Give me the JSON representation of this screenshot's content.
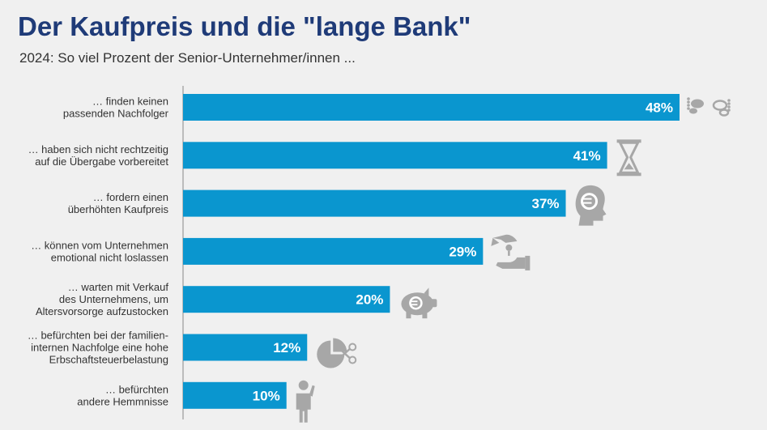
{
  "chart_data": {
    "type": "bar",
    "orientation": "horizontal",
    "title": "Der Kaufpreis und die \"lange Bank\"",
    "subtitle": "2024: So viel Prozent der Senior-Unternehmer/innen ...",
    "categories": [
      [
        "… finden keinen",
        "passenden Nachfolger"
      ],
      [
        "… haben sich nicht rechtzeitig",
        "auf die Übergabe vorbereitet"
      ],
      [
        "… fordern einen",
        "überhöhten Kaufpreis"
      ],
      [
        "… können vom Unternehmen",
        "emotional nicht loslassen"
      ],
      [
        "… warten mit Verkauf",
        "des Unternehmens, um",
        "Altersvorsorge aufzustocken"
      ],
      [
        "… befürchten bei der familien-",
        "internen Nachfolge eine hohe",
        "Erbschaftsteuerbelastung"
      ],
      [
        "… befürchten",
        "andere Hemmnisse"
      ]
    ],
    "values": [
      48,
      41,
      37,
      29,
      20,
      12,
      10
    ],
    "value_labels": [
      "48%",
      "41%",
      "37%",
      "29%",
      "20%",
      "12%",
      "10%"
    ],
    "icons": [
      "footprints-icon",
      "hourglass-icon",
      "euro-head-icon",
      "giving-hands-icon",
      "piggy-bank-icon",
      "pie-scissors-icon",
      "thinking-person-icon"
    ],
    "unit": "%",
    "xlim": [
      0,
      50
    ],
    "bar_color": "#0a96cf",
    "icon_color": "#a7a7a7",
    "grid": false
  }
}
